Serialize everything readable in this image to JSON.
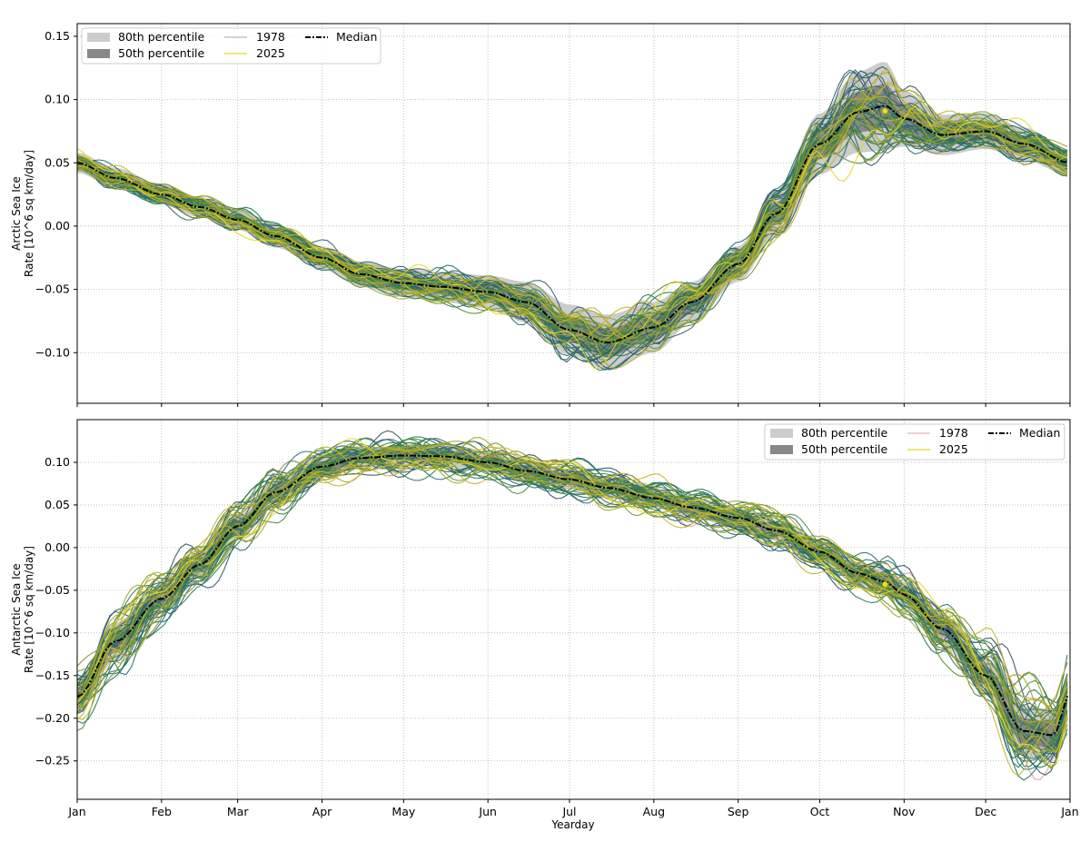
{
  "chart_data": [
    {
      "type": "line",
      "panel": "top",
      "ylabel_line1": "Arctic Sea Ice",
      "ylabel_line2": "Rate [10^6 sq km/day]",
      "xlabel": "",
      "xlim": [
        1,
        366
      ],
      "ylim": [
        -0.14,
        0.16
      ],
      "yticks": [
        -0.1,
        -0.05,
        0.0,
        0.05,
        0.1,
        0.15
      ],
      "ytick_labels": [
        "−0.10",
        "−0.05",
        "0.00",
        "0.05",
        "0.10",
        "0.15"
      ],
      "x_month_days": [
        1,
        32,
        60,
        91,
        121,
        152,
        182,
        213,
        244,
        274,
        305,
        335,
        366
      ],
      "grid": true,
      "legend_position": "top-left",
      "legend": {
        "p80": "80th percentile",
        "p50": "50th percentile",
        "year_first": "1978",
        "year_last": "2025",
        "median": "Median"
      },
      "median_x": [
        1,
        15,
        32,
        46,
        60,
        74,
        91,
        105,
        121,
        135,
        152,
        166,
        182,
        196,
        213,
        227,
        244,
        258,
        274,
        288,
        298,
        305,
        319,
        335,
        349,
        366
      ],
      "median_y": [
        0.05,
        0.038,
        0.025,
        0.015,
        0.005,
        -0.008,
        -0.025,
        -0.038,
        -0.045,
        -0.048,
        -0.052,
        -0.06,
        -0.082,
        -0.092,
        -0.08,
        -0.06,
        -0.03,
        0.01,
        0.065,
        0.09,
        0.095,
        0.085,
        0.072,
        0.075,
        0.065,
        0.05
      ],
      "band80_width": [
        0.008,
        0.008,
        0.008,
        0.008,
        0.008,
        0.009,
        0.009,
        0.01,
        0.011,
        0.012,
        0.013,
        0.016,
        0.02,
        0.022,
        0.02,
        0.016,
        0.014,
        0.018,
        0.024,
        0.032,
        0.035,
        0.022,
        0.016,
        0.014,
        0.013,
        0.01
      ],
      "current_point": [
        298,
        0.091
      ],
      "wobble_scale": 0.6
    },
    {
      "type": "line",
      "panel": "bottom",
      "ylabel_line1": "Antarctic Sea Ice",
      "ylabel_line2": "Rate [10^6 sq km/day]",
      "xlabel": "Yearday",
      "xlim": [
        1,
        366
      ],
      "ylim": [
        -0.295,
        0.15
      ],
      "yticks": [
        -0.25,
        -0.2,
        -0.15,
        -0.1,
        -0.05,
        0.0,
        0.05,
        0.1
      ],
      "ytick_labels": [
        "−0.25",
        "−0.20",
        "−0.15",
        "−0.10",
        "−0.05",
        "0.00",
        "0.05",
        "0.10"
      ],
      "xtick_labels": [
        "Jan",
        "Feb",
        "Mar",
        "Apr",
        "May",
        "Jun",
        "Jul",
        "Aug",
        "Sep",
        "Oct",
        "Nov",
        "Dec",
        "Jan"
      ],
      "x_month_days": [
        1,
        32,
        60,
        91,
        121,
        152,
        182,
        213,
        244,
        274,
        305,
        335,
        366
      ],
      "grid": true,
      "legend_position": "top-right",
      "legend": {
        "p80": "80th percentile",
        "p50": "50th percentile",
        "year_first": "1978",
        "year_last": "2025",
        "median": "Median"
      },
      "median_x": [
        1,
        15,
        32,
        46,
        60,
        74,
        91,
        105,
        121,
        135,
        152,
        166,
        182,
        196,
        213,
        227,
        244,
        258,
        274,
        288,
        298,
        305,
        319,
        335,
        349,
        360,
        366
      ],
      "median_y": [
        -0.175,
        -0.11,
        -0.06,
        -0.02,
        0.025,
        0.065,
        0.095,
        0.105,
        0.108,
        0.107,
        0.1,
        0.09,
        0.08,
        0.07,
        0.058,
        0.047,
        0.035,
        0.02,
        -0.005,
        -0.03,
        -0.04,
        -0.055,
        -0.095,
        -0.15,
        -0.215,
        -0.22,
        -0.17
      ],
      "band80_width": [
        0.02,
        0.022,
        0.018,
        0.016,
        0.016,
        0.015,
        0.013,
        0.012,
        0.012,
        0.012,
        0.012,
        0.012,
        0.012,
        0.012,
        0.012,
        0.012,
        0.012,
        0.012,
        0.013,
        0.013,
        0.014,
        0.015,
        0.018,
        0.022,
        0.03,
        0.03,
        0.025
      ],
      "current_point": [
        298,
        -0.043
      ],
      "wobble_scale": 1.0
    }
  ],
  "colors": {
    "band80": "#cccccc",
    "band50": "#888888",
    "median": "#000000",
    "year_first": "#aaaaaa",
    "year_last": "#e6d820",
    "year_palette": [
      "#2f4f6b",
      "#355d73",
      "#2a6b6e",
      "#1f7060",
      "#2b7a4f",
      "#4c8a3a",
      "#76962e",
      "#9ea42a",
      "#c2b22a"
    ],
    "grid": "#b0b0b0"
  }
}
